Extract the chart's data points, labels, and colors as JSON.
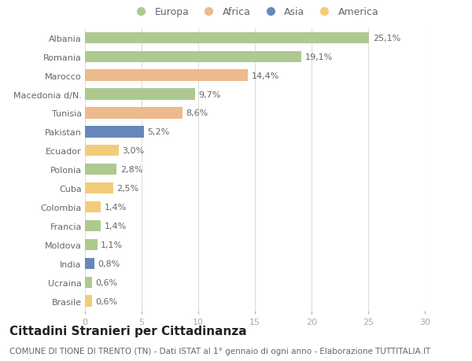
{
  "countries": [
    "Albania",
    "Romania",
    "Marocco",
    "Macedonia d/N.",
    "Tunisia",
    "Pakistan",
    "Ecuador",
    "Polonia",
    "Cuba",
    "Colombia",
    "Francia",
    "Moldova",
    "India",
    "Ucraina",
    "Brasile"
  ],
  "values": [
    25.1,
    19.1,
    14.4,
    9.7,
    8.6,
    5.2,
    3.0,
    2.8,
    2.5,
    1.4,
    1.4,
    1.1,
    0.8,
    0.6,
    0.6
  ],
  "labels": [
    "25,1%",
    "19,1%",
    "14,4%",
    "9,7%",
    "8,6%",
    "5,2%",
    "3,0%",
    "2,8%",
    "2,5%",
    "1,4%",
    "1,4%",
    "1,1%",
    "0,8%",
    "0,6%",
    "0,6%"
  ],
  "continents": [
    "Europa",
    "Europa",
    "Africa",
    "Europa",
    "Africa",
    "Asia",
    "America",
    "Europa",
    "America",
    "America",
    "Europa",
    "Europa",
    "Asia",
    "Europa",
    "America"
  ],
  "continent_colors": {
    "Europa": "#adc990",
    "Africa": "#edba8e",
    "Asia": "#6688bb",
    "America": "#f2cc7a"
  },
  "legend_order": [
    "Europa",
    "Africa",
    "Asia",
    "America"
  ],
  "xlim": [
    0,
    30
  ],
  "xticks": [
    0,
    5,
    10,
    15,
    20,
    25,
    30
  ],
  "title": "Cittadini Stranieri per Cittadinanza",
  "subtitle": "COMUNE DI TIONE DI TRENTO (TN) - Dati ISTAT al 1° gennaio di ogni anno - Elaborazione TUTTITALIA.IT",
  "background_color": "#ffffff",
  "bar_height": 0.6,
  "title_fontsize": 11,
  "subtitle_fontsize": 7.5,
  "label_fontsize": 8,
  "tick_fontsize": 8,
  "legend_fontsize": 9
}
